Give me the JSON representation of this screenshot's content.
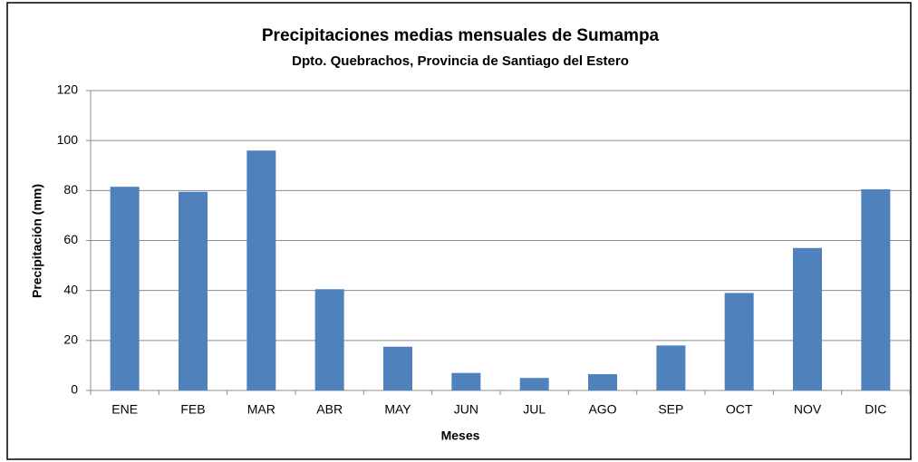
{
  "chart_data": {
    "type": "bar",
    "title": "Precipitaciones medias mensuales de Sumampa",
    "subtitle": "Dpto. Quebrachos, Provincia de Santiago del Estero",
    "x_label": "Meses",
    "y_label": "Precipitación (mm)",
    "categories": [
      "ENE",
      "FEB",
      "MAR",
      "ABR",
      "MAY",
      "JUN",
      "JUL",
      "AGO",
      "SEP",
      "OCT",
      "NOV",
      "DIC"
    ],
    "values": [
      81.5,
      79.5,
      96,
      40.5,
      17.5,
      7,
      5,
      6.5,
      18,
      39,
      57,
      80.5
    ],
    "color": "#4f81bd",
    "ylim": [
      0,
      120
    ],
    "yticks": [
      0,
      20,
      40,
      60,
      80,
      100,
      120
    ],
    "grid": true
  }
}
